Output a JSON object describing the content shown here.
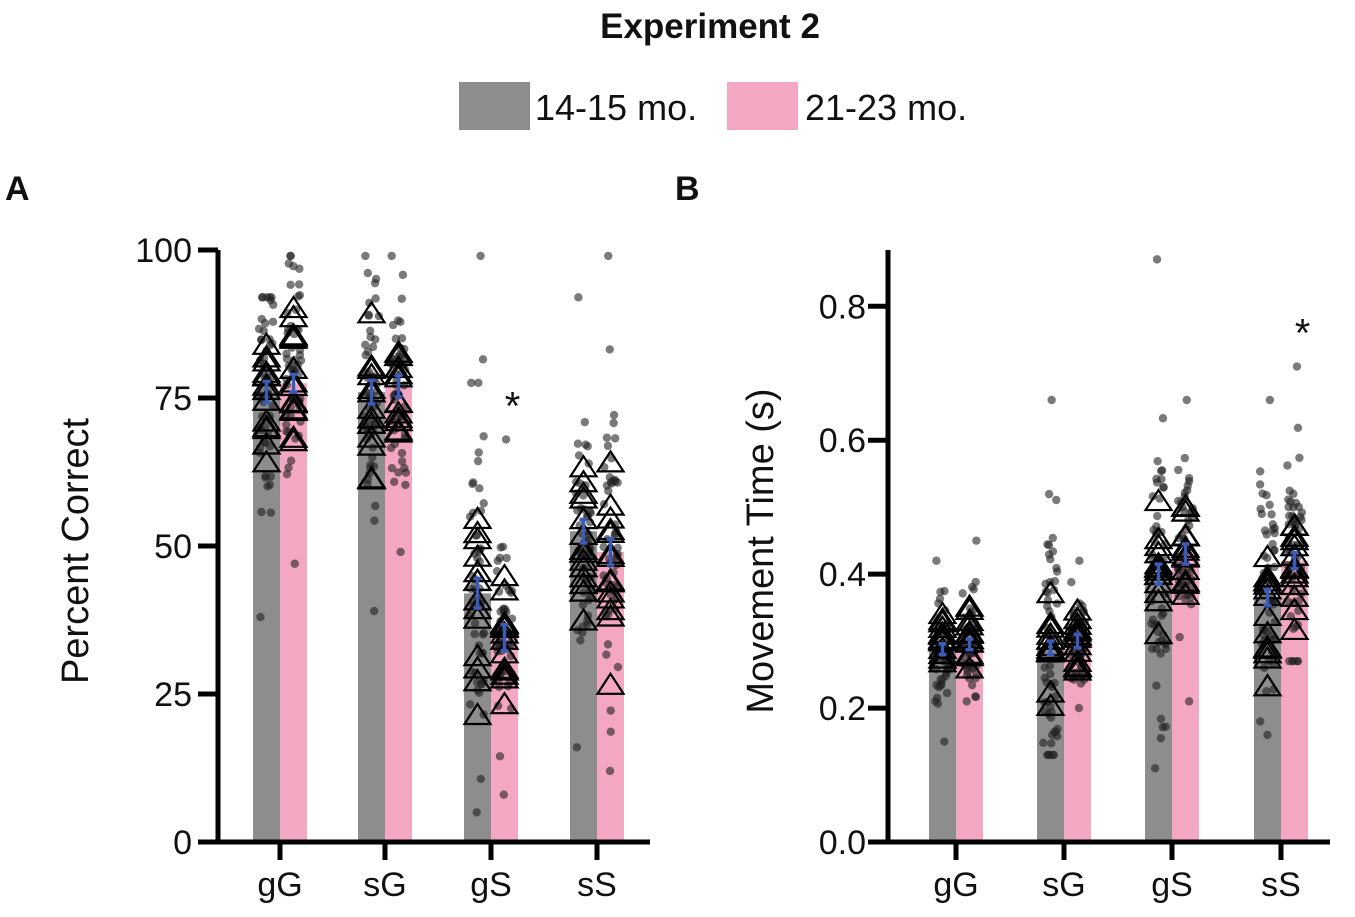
{
  "title": "Experiment 2",
  "legend": [
    {
      "label": "14-15 mo.",
      "color": "#8d8d8d"
    },
    {
      "label": "21-23 mo.",
      "color": "#f4a7c3"
    }
  ],
  "error_bar_color": "#3b5bb5",
  "chart_data": [
    {
      "panel": "A",
      "type": "bar",
      "ylabel": "Percent Correct",
      "ylim": [
        0,
        100
      ],
      "yticks": [
        "0",
        "25",
        "50",
        "75",
        "100"
      ],
      "ytick_values": [
        0,
        25,
        50,
        75,
        100
      ],
      "categories": [
        "gG",
        "sG",
        "gS",
        "sS"
      ],
      "series": [
        {
          "name": "14-15 mo.",
          "values": [
            76,
            76,
            42,
            52.5
          ],
          "sem": [
            1.8,
            2,
            2.5,
            2
          ],
          "range": [
            [
              38,
              92
            ],
            [
              39,
              99
            ],
            [
              5,
              99
            ],
            [
              16,
              92
            ]
          ]
        },
        {
          "name": "21-23 mo.",
          "values": [
            77.5,
            77,
            34.5,
            49
          ],
          "sem": [
            1.5,
            1.8,
            2.2,
            2.2
          ],
          "range": [
            [
              47,
              99
            ],
            [
              49,
              99
            ],
            [
              8,
              68
            ],
            [
              12,
              99
            ]
          ]
        }
      ],
      "annotations": [
        {
          "category": "gS",
          "text": "*"
        }
      ]
    },
    {
      "panel": "B",
      "type": "bar",
      "ylabel": "Movement Time (s)",
      "ylim": [
        0,
        0.884
      ],
      "yticks": [
        "0.0",
        "0.2",
        "0.4",
        "0.6",
        "0.8"
      ],
      "ytick_values": [
        0,
        0.2,
        0.4,
        0.6,
        0.8
      ],
      "categories": [
        "gG",
        "sG",
        "gS",
        "sS"
      ],
      "series": [
        {
          "name": "14-15 mo.",
          "values": [
            0.288,
            0.29,
            0.4,
            0.365
          ],
          "sem": [
            0.008,
            0.01,
            0.015,
            0.012
          ],
          "range": [
            [
              0.15,
              0.42
            ],
            [
              0.13,
              0.66
            ],
            [
              0.11,
              0.87
            ],
            [
              0.16,
              0.66
            ]
          ]
        },
        {
          "name": "21-23 mo.",
          "values": [
            0.295,
            0.3,
            0.43,
            0.42
          ],
          "sem": [
            0.008,
            0.01,
            0.015,
            0.012
          ],
          "range": [
            [
              0.21,
              0.45
            ],
            [
              0.2,
              0.42
            ],
            [
              0.21,
              0.66
            ],
            [
              0.27,
              0.71
            ]
          ]
        }
      ],
      "annotations": [
        {
          "category": "sS",
          "text": "*"
        }
      ]
    }
  ]
}
